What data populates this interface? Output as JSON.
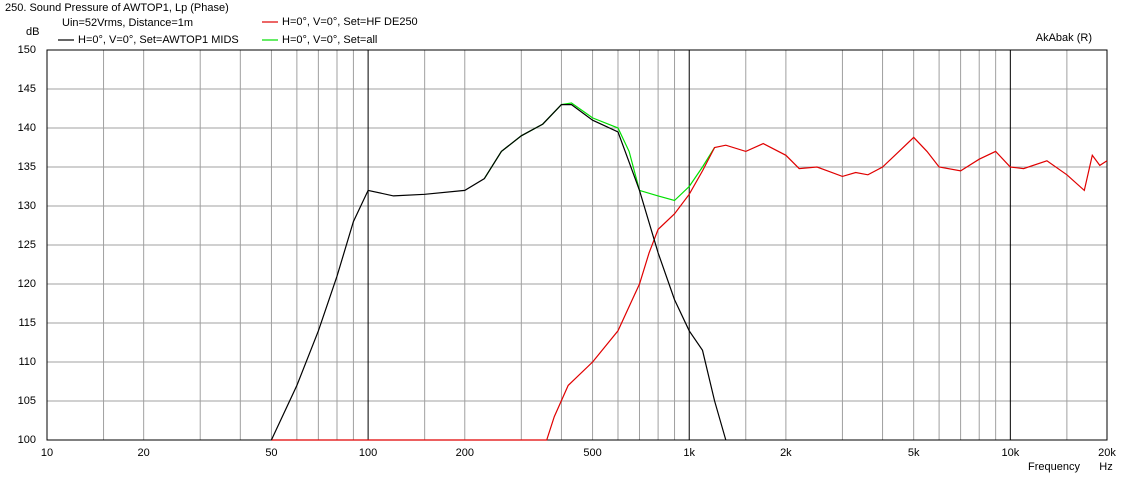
{
  "chart_data": {
    "type": "line",
    "title": "250. Sound Pressure of AWTOP1, Lp (Phase)",
    "subtitle": "Uin=52Vrms, Distance=1m",
    "annotation": "AkAbak (R)",
    "ylabel": "dB",
    "xlabel": "Frequency",
    "xunit": "Hz",
    "xlog": true,
    "grid": true,
    "xlim": [
      10,
      20000
    ],
    "ylim": [
      100,
      150
    ],
    "yticks": [
      100,
      105,
      110,
      115,
      120,
      125,
      130,
      135,
      140,
      145,
      150
    ],
    "xticks": [
      10,
      20,
      50,
      100,
      200,
      500,
      {
        "value": 1000,
        "label": "1k"
      },
      {
        "value": 2000,
        "label": "2k"
      },
      {
        "value": 5000,
        "label": "5k"
      },
      {
        "value": 10000,
        "label": "10k"
      },
      {
        "value": 20000,
        "label": "20k"
      }
    ],
    "xminor": [
      15,
      30,
      40,
      60,
      70,
      80,
      90,
      150,
      300,
      400,
      600,
      700,
      800,
      900,
      1500,
      3000,
      4000,
      6000,
      7000,
      8000,
      9000,
      15000
    ],
    "series": [
      {
        "name": "H=0°, V=0°, Set=all",
        "color": "#00e000",
        "x": [
          230,
          260,
          300,
          350,
          400,
          430,
          500,
          600,
          650,
          700,
          800,
          900,
          1000,
          1100,
          1200
        ],
        "values": [
          133.5,
          137,
          139,
          140.5,
          143,
          143.2,
          141.3,
          140,
          137,
          132,
          131.3,
          130.7,
          132.5,
          135,
          137.5
        ]
      },
      {
        "name": "H=0°, V=0°, Set=HF DE250",
        "color": "#e00000",
        "x": [
          50,
          360,
          380,
          420,
          500,
          600,
          700,
          750,
          800,
          900,
          1000,
          1100,
          1200,
          1300,
          1500,
          1700,
          2000,
          2200,
          2500,
          2700,
          3000,
          3300,
          3600,
          4000,
          4500,
          5000,
          5500,
          6000,
          7000,
          8000,
          9000,
          10000,
          11000,
          13000,
          15000,
          17000,
          18000,
          19000,
          20000
        ],
        "values": [
          100,
          100,
          103,
          107,
          110,
          114,
          120,
          124,
          127,
          129,
          131.5,
          134.5,
          137.5,
          137.8,
          137,
          138,
          136.5,
          134.8,
          135,
          134.5,
          133.8,
          134.3,
          134,
          135,
          137,
          138.8,
          137,
          135,
          134.5,
          136,
          137,
          135,
          134.8,
          135.8,
          134,
          132,
          136.5,
          135.2,
          135.8
        ]
      },
      {
        "name": "H=0°, V=0°, Set=AWTOP1 MIDS",
        "color": "#000000",
        "x": [
          50,
          60,
          70,
          80,
          90,
          100,
          120,
          150,
          200,
          230,
          260,
          300,
          350,
          400,
          430,
          500,
          600,
          700,
          800,
          900,
          1000,
          1100,
          1200,
          1300
        ],
        "values": [
          100,
          107,
          114,
          121,
          128,
          132,
          131.3,
          131.5,
          132,
          133.5,
          137,
          139,
          140.5,
          143,
          143,
          141,
          139.5,
          132,
          124,
          118,
          114,
          111.5,
          105,
          100
        ]
      }
    ]
  }
}
